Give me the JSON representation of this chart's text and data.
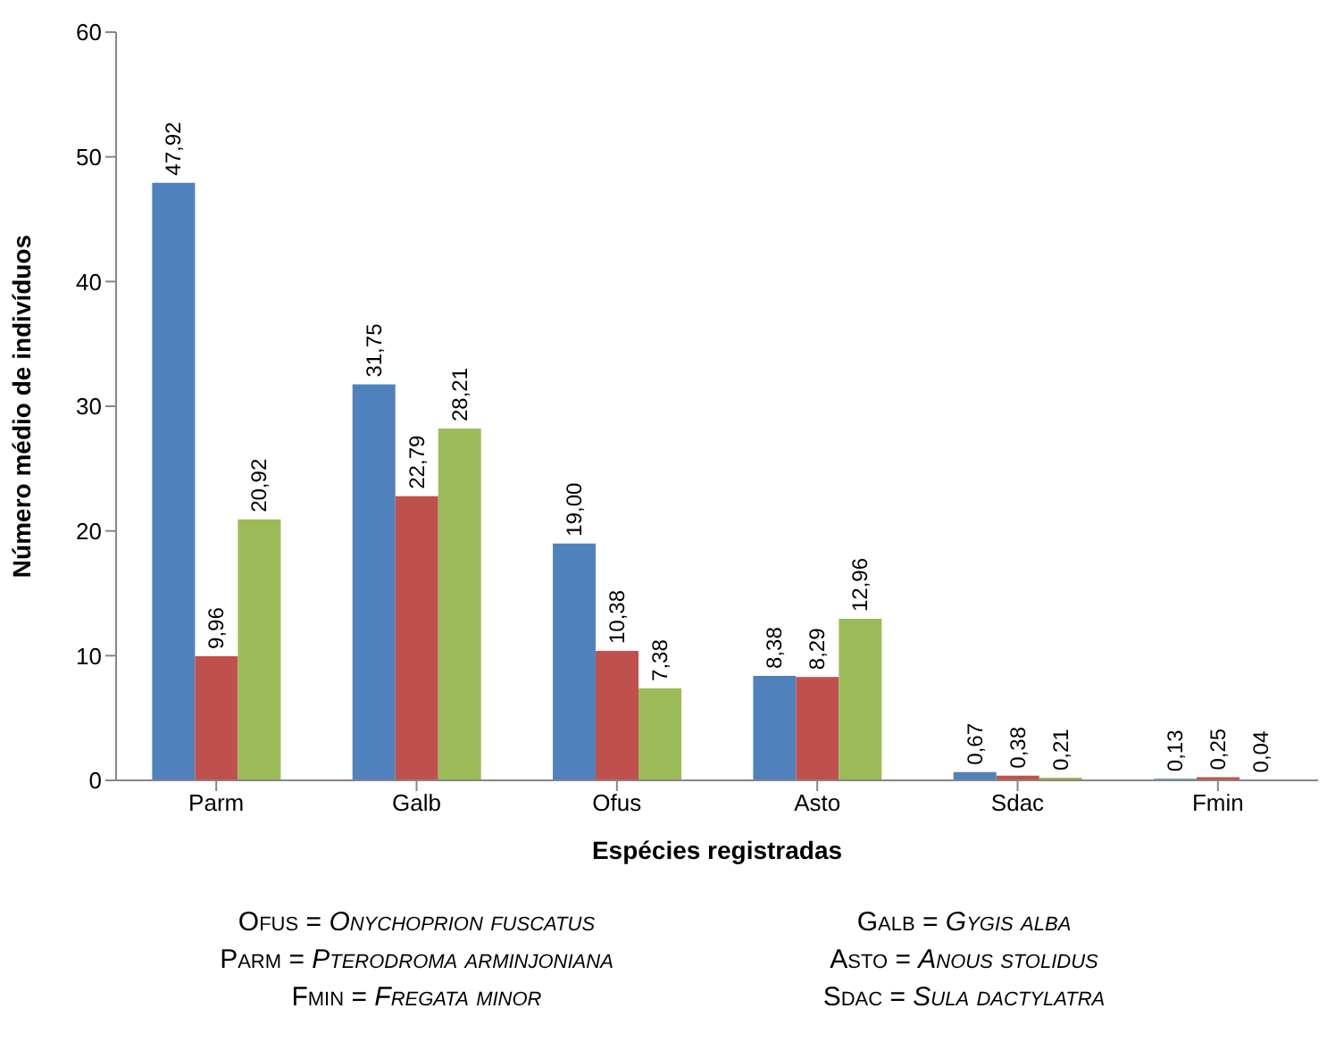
{
  "chart_data": {
    "type": "bar",
    "xlabel": "Espécies registradas",
    "ylabel": "Número médio de indivíduos",
    "categories": [
      "Parm",
      "Galb",
      "Ofus",
      "Asto",
      "Sdac",
      "Fmin"
    ],
    "series": [
      {
        "color": "#4f81bd",
        "values": [
          47.92,
          31.75,
          19.0,
          8.38,
          0.67,
          0.13
        ],
        "value_labels": [
          "47,92",
          "31,75",
          "19,00",
          "8,38",
          "0,67",
          "0,13"
        ]
      },
      {
        "color": "#c0504d",
        "values": [
          9.96,
          22.79,
          10.38,
          8.29,
          0.38,
          0.25
        ],
        "value_labels": [
          "9,96",
          "22,79",
          "10,38",
          "8,29",
          "0,38",
          "0,25"
        ]
      },
      {
        "color": "#9bbb59",
        "values": [
          20.92,
          28.21,
          7.38,
          12.96,
          0.21,
          0.04
        ],
        "value_labels": [
          "20,92",
          "28,21",
          "7,38",
          "12,96",
          "0,21",
          "0,04"
        ]
      }
    ],
    "ylim": [
      0,
      60
    ],
    "yticks": [
      0,
      10,
      20,
      30,
      40,
      50,
      60
    ],
    "grid": false,
    "legend": false,
    "annotations": [
      "Ofus = Onychoprion fuscatus",
      "Galb = Gygis alba",
      "Parm = Pterodroma arminjoniana",
      "Asto = Anous stolidus",
      "Fmin = Fregata minor",
      "Sdac = Sula dactylatra"
    ]
  }
}
